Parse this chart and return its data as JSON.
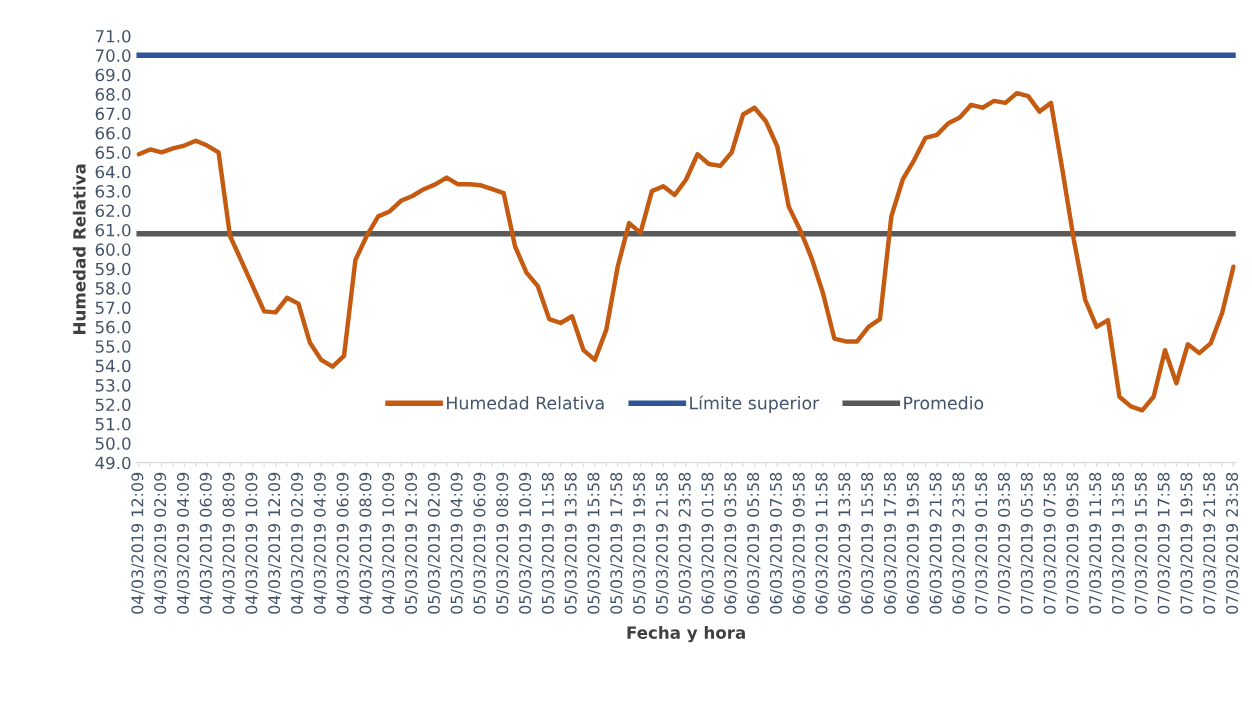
{
  "chart_data": {
    "type": "line",
    "xlabel": "Fecha y hora",
    "ylabel": "Humedad Relativa",
    "categories": [
      "04/03/2019 12:09",
      null,
      "04/03/2019 02:09",
      null,
      "04/03/2019 04:09",
      null,
      "04/03/2019 06:09",
      null,
      "04/03/2019 08:09",
      null,
      "04/03/2019 10:09",
      null,
      "04/03/2019 12:09",
      null,
      "04/03/2019 02:09",
      null,
      "04/03/2019 04:09",
      null,
      "04/03/2019 06:09",
      null,
      "04/03/2019 08:09",
      null,
      "04/03/2019 10:09",
      null,
      "05/03/2019 12:09",
      null,
      "05/03/2019 02:09",
      null,
      "05/03/2019 04:09",
      null,
      "05/03/2019 06:09",
      null,
      "05/03/2019 08:09",
      null,
      "05/03/2019 10:09",
      null,
      "05/03/2019 11:58",
      null,
      "05/03/2019 13:58",
      null,
      "05/03/2019 15:58",
      null,
      "05/03/2019 17:58",
      null,
      "05/03/2019 19:58",
      null,
      "05/03/2019 21:58",
      null,
      "05/03/2019 23:58",
      null,
      "06/03/2019 01:58",
      null,
      "06/03/2019 03:58",
      null,
      "06/03/2019 05:58",
      null,
      "06/03/2019 07:58",
      null,
      "06/03/2019 09:58",
      null,
      "06/03/2019 11:58",
      null,
      "06/03/2019 13:58",
      null,
      "06/03/2019 15:58",
      null,
      "06/03/2019 17:58",
      null,
      "06/03/2019 19:58",
      null,
      "06/03/2019 21:58",
      null,
      "06/03/2019 23:58",
      null,
      "07/03/2019 01:58",
      null,
      "07/03/2019 03:58",
      null,
      "07/03/2019 05:58",
      null,
      "07/03/2019 07:58",
      null,
      "07/03/2019 09:58",
      null,
      "07/03/2019 11:58",
      null,
      "07/03/2019 13:58",
      null,
      "07/03/2019 15:58",
      null,
      "07/03/2019 17:58",
      null,
      "07/03/2019 19:58",
      null,
      "07/03/2019 21:58",
      null,
      "07/03/2019 23:58"
    ],
    "series": [
      {
        "name": "Humedad Relativa",
        "color": "#c55a11",
        "values": [
          64.9,
          65.15,
          65.0,
          65.2,
          65.35,
          65.6,
          65.35,
          65.0,
          60.7,
          59.4,
          58.1,
          56.8,
          56.75,
          57.5,
          57.2,
          55.2,
          54.3,
          53.95,
          54.5,
          59.45,
          60.7,
          61.7,
          61.95,
          62.5,
          62.75,
          63.1,
          63.35,
          63.7,
          63.35,
          63.35,
          63.3,
          63.1,
          62.9,
          60.15,
          58.8,
          58.1,
          56.4,
          56.2,
          56.55,
          54.8,
          54.3,
          55.85,
          59.1,
          61.35,
          60.85,
          63.0,
          63.25,
          62.8,
          63.6,
          64.9,
          64.4,
          64.3,
          65.0,
          66.95,
          67.3,
          66.6,
          65.3,
          62.2,
          61.0,
          59.55,
          57.75,
          55.4,
          55.25,
          55.25,
          56.0,
          56.4,
          61.7,
          63.6,
          64.6,
          65.75,
          65.9,
          66.5,
          66.8,
          67.45,
          67.3,
          67.65,
          67.55,
          68.05,
          67.9,
          67.1,
          67.55,
          64.1,
          60.5,
          57.4,
          56.0,
          56.35,
          52.4,
          51.9,
          51.7,
          52.4,
          54.8,
          53.1,
          55.1,
          54.65,
          55.15,
          56.7,
          59.1
        ]
      }
    ],
    "ref_lines": [
      {
        "axis": "y",
        "value": 70.0,
        "label": "Límite superior",
        "color": "#2f5597"
      },
      {
        "axis": "y",
        "value": 60.8,
        "label": "Promedio",
        "color": "#595959"
      }
    ],
    "ylim": [
      49,
      71
    ],
    "yticks": [
      {
        "value": 49,
        "label": "49.0"
      },
      {
        "value": 50,
        "label": "50.0"
      },
      {
        "value": 51,
        "label": "51.0"
      },
      {
        "value": 52,
        "label": "52.0"
      },
      {
        "value": 53,
        "label": "53.0"
      },
      {
        "value": 54,
        "label": "54.0"
      },
      {
        "value": 55,
        "label": "55.0"
      },
      {
        "value": 56,
        "label": "56.0"
      },
      {
        "value": 57,
        "label": "57.0"
      },
      {
        "value": 58,
        "label": "58.0"
      },
      {
        "value": 59,
        "label": "59.0"
      },
      {
        "value": 60,
        "label": "60.0"
      },
      {
        "value": 61,
        "label": "61.0"
      },
      {
        "value": 62,
        "label": "62.0"
      },
      {
        "value": 63,
        "label": "63.0"
      },
      {
        "value": 64,
        "label": "64.0"
      },
      {
        "value": 65,
        "label": "65.0"
      },
      {
        "value": 66,
        "label": "66.0"
      },
      {
        "value": 67,
        "label": "67.0"
      },
      {
        "value": 68,
        "label": "68.0"
      },
      {
        "value": 69,
        "label": "69.0"
      },
      {
        "value": 70,
        "label": "70.0"
      },
      {
        "value": 71,
        "label": "71.0"
      }
    ],
    "grid": false,
    "legend": "bottom",
    "marker": "none",
    "line_style": "solid"
  }
}
